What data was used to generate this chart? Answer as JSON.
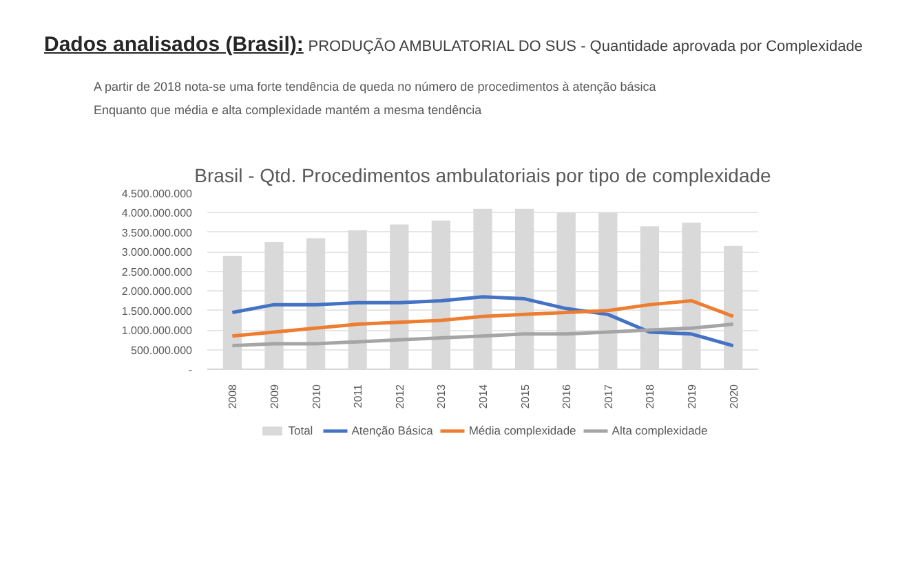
{
  "chart_data": {
    "type": "bar",
    "title": "Brasil - Qtd. Procedimentos ambulatoriais por tipo de complexidade",
    "annotations": [
      "Dados analisados (Brasil):",
      "PRODUÇÃO AMBULATORIAL DO SUS - Quantidade aprovada por Complexidade",
      "A partir de 2018 nota-se uma forte tendência de queda no número de procedimentos à atenção básica",
      "Enquanto que média e alta complexidade mantém a mesma tendência"
    ],
    "categories": [
      "2008",
      "2009",
      "2010",
      "2011",
      "2012",
      "2013",
      "2014",
      "2015",
      "2016",
      "2017",
      "2018",
      "2019",
      "2020"
    ],
    "series": [
      {
        "name": "Total",
        "color": "#d9d9d9",
        "values": [
          2900000000,
          3250000000,
          3350000000,
          3550000000,
          3700000000,
          3800000000,
          4100000000,
          4100000000,
          4000000000,
          4000000000,
          3650000000,
          3750000000,
          3150000000
        ]
      },
      {
        "name": "Atenção Básica",
        "color": "#4472c4",
        "type": "line",
        "values": [
          1450000000,
          1650000000,
          1650000000,
          1700000000,
          1700000000,
          1750000000,
          1850000000,
          1800000000,
          1550000000,
          1400000000,
          950000000,
          900000000,
          600000000
        ]
      },
      {
        "name": "Média complexidade",
        "color": "#ed7d31",
        "type": "line",
        "values": [
          850000000,
          950000000,
          1050000000,
          1150000000,
          1200000000,
          1250000000,
          1350000000,
          1400000000,
          1450000000,
          1500000000,
          1650000000,
          1750000000,
          1350000000
        ]
      },
      {
        "name": "Alta complexidade",
        "color": "#a5a5a5",
        "type": "line",
        "values": [
          600000000,
          650000000,
          650000000,
          700000000,
          750000000,
          800000000,
          850000000,
          900000000,
          900000000,
          950000000,
          1000000000,
          1050000000,
          1150000000
        ]
      }
    ],
    "ylim": [
      0,
      4500000000
    ],
    "yticks": [
      {
        "value": 0,
        "label": "-"
      },
      {
        "value": 500000000,
        "label": "500.000.000"
      },
      {
        "value": 1000000000,
        "label": "1.000.000.000"
      },
      {
        "value": 1500000000,
        "label": "1.500.000.000"
      },
      {
        "value": 2000000000,
        "label": "2.000.000.000"
      },
      {
        "value": 2500000000,
        "label": "2.500.000.000"
      },
      {
        "value": 3000000000,
        "label": "3.000.000.000"
      },
      {
        "value": 3500000000,
        "label": "3.500.000.000"
      },
      {
        "value": 4000000000,
        "label": "4.000.000.000"
      },
      {
        "value": 4500000000,
        "label": "4.500.000.000"
      }
    ],
    "grid": "y",
    "legend": "bottom",
    "marker": "none",
    "line_style": "solid"
  }
}
